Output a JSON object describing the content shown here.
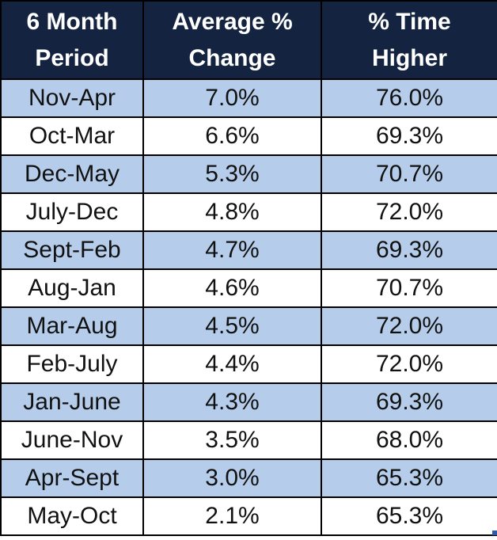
{
  "table": {
    "headers": [
      "6 Month Period",
      "Average % Change",
      "% Time Higher"
    ],
    "rows": [
      [
        "Nov-Apr",
        "7.0%",
        "76.0%"
      ],
      [
        "Oct-Mar",
        "6.6%",
        "69.3%"
      ],
      [
        "Dec-May",
        "5.3%",
        "70.7%"
      ],
      [
        "July-Dec",
        "4.8%",
        "72.0%"
      ],
      [
        "Sept-Feb",
        "4.7%",
        "69.3%"
      ],
      [
        "Aug-Jan",
        "4.6%",
        "70.7%"
      ],
      [
        "Mar-Aug",
        "4.5%",
        "72.0%"
      ],
      [
        "Feb-July",
        "4.4%",
        "72.0%"
      ],
      [
        "Jan-June",
        "4.3%",
        "69.3%"
      ],
      [
        "June-Nov",
        "3.5%",
        "68.0%"
      ],
      [
        "Apr-Sept",
        "3.0%",
        "65.3%"
      ],
      [
        "May-Oct",
        "2.1%",
        "65.3%"
      ]
    ]
  },
  "colors": {
    "header_bg": "#14233f",
    "header_text": "#ffffff",
    "stripe": "#b5cdea",
    "plain": "#ffffff",
    "border": "#000000"
  }
}
